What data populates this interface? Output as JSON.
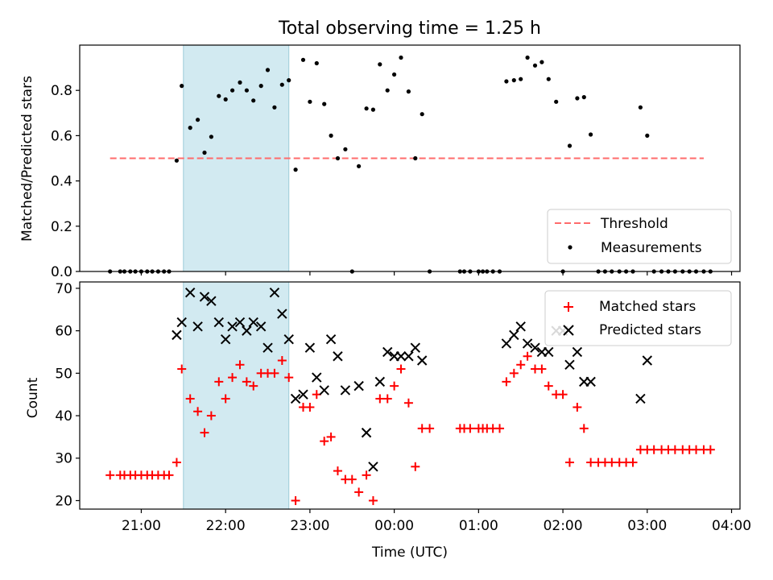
{
  "figure": {
    "title": "Total observing time = 1.25 h",
    "xlabel": "Time (UTC)",
    "x_ticks": [
      "21:00",
      "22:00",
      "23:00",
      "00:00",
      "01:00",
      "02:00",
      "03:00",
      "04:00"
    ],
    "x_tick_hours": [
      21,
      22,
      23,
      24,
      25,
      26,
      27,
      28
    ],
    "xlim_hours": [
      20.27,
      28.1
    ],
    "highlight_span_hours": [
      21.5,
      22.75
    ],
    "colors": {
      "highlight": "#add8e6",
      "threshold": "#ff6b6b",
      "measurement": "#000000",
      "matched": "#ff0000",
      "predicted": "#000000"
    }
  },
  "chart_data": [
    {
      "type": "scatter",
      "ylabel": "Matched/Predicted stars",
      "ylim": [
        0,
        1.0
      ],
      "y_ticks": [
        "0.0",
        "0.2",
        "0.4",
        "0.6",
        "0.8"
      ],
      "y_tick_values": [
        0.0,
        0.2,
        0.4,
        0.6,
        0.8
      ],
      "legend_position": "lower-right",
      "threshold": {
        "name": "Threshold",
        "value": 0.5,
        "x_range_hours": [
          20.63,
          27.67
        ]
      },
      "series": [
        {
          "name": "Measurements",
          "points": [
            [
              20.63,
              0.0
            ],
            [
              20.75,
              0.0
            ],
            [
              20.8,
              0.0
            ],
            [
              20.87,
              0.0
            ],
            [
              20.93,
              0.0
            ],
            [
              21.0,
              0.0
            ],
            [
              21.07,
              0.0
            ],
            [
              21.13,
              0.0
            ],
            [
              21.2,
              0.0
            ],
            [
              21.27,
              0.0
            ],
            [
              21.33,
              0.0
            ],
            [
              21.42,
              0.49
            ],
            [
              21.48,
              0.82
            ],
            [
              21.58,
              0.635
            ],
            [
              21.67,
              0.67
            ],
            [
              21.75,
              0.525
            ],
            [
              21.83,
              0.595
            ],
            [
              21.92,
              0.775
            ],
            [
              22.0,
              0.76
            ],
            [
              22.08,
              0.8
            ],
            [
              22.17,
              0.835
            ],
            [
              22.25,
              0.8
            ],
            [
              22.33,
              0.755
            ],
            [
              22.42,
              0.82
            ],
            [
              22.5,
              0.89
            ],
            [
              22.58,
              0.725
            ],
            [
              22.67,
              0.825
            ],
            [
              22.75,
              0.845
            ],
            [
              22.83,
              0.45
            ],
            [
              22.92,
              0.935
            ],
            [
              23.0,
              0.75
            ],
            [
              23.08,
              0.92
            ],
            [
              23.17,
              0.74
            ],
            [
              23.25,
              0.6
            ],
            [
              23.33,
              0.5
            ],
            [
              23.42,
              0.54
            ],
            [
              23.5,
              0.0
            ],
            [
              23.58,
              0.465
            ],
            [
              23.67,
              0.72
            ],
            [
              23.75,
              0.715
            ],
            [
              23.83,
              0.915
            ],
            [
              23.92,
              0.8
            ],
            [
              24.0,
              0.87
            ],
            [
              24.08,
              0.945
            ],
            [
              24.17,
              0.795
            ],
            [
              24.25,
              0.5
            ],
            [
              24.33,
              0.695
            ],
            [
              24.42,
              0.0
            ],
            [
              24.78,
              0.0
            ],
            [
              24.83,
              0.0
            ],
            [
              24.9,
              0.0
            ],
            [
              25.0,
              0.0
            ],
            [
              25.05,
              0.0
            ],
            [
              25.1,
              0.0
            ],
            [
              25.17,
              0.0
            ],
            [
              25.25,
              0.0
            ],
            [
              25.33,
              0.84
            ],
            [
              25.42,
              0.845
            ],
            [
              25.5,
              0.85
            ],
            [
              25.58,
              0.945
            ],
            [
              25.67,
              0.91
            ],
            [
              25.75,
              0.925
            ],
            [
              25.83,
              0.85
            ],
            [
              25.92,
              0.75
            ],
            [
              26.0,
              0.0
            ],
            [
              26.08,
              0.555
            ],
            [
              26.17,
              0.765
            ],
            [
              26.25,
              0.77
            ],
            [
              26.33,
              0.605
            ],
            [
              26.42,
              0.0
            ],
            [
              26.5,
              0.0
            ],
            [
              26.58,
              0.0
            ],
            [
              26.67,
              0.0
            ],
            [
              26.75,
              0.0
            ],
            [
              26.83,
              0.0
            ],
            [
              26.92,
              0.725
            ],
            [
              27.0,
              0.6
            ],
            [
              27.08,
              0.0
            ],
            [
              27.17,
              0.0
            ],
            [
              27.25,
              0.0
            ],
            [
              27.33,
              0.0
            ],
            [
              27.42,
              0.0
            ],
            [
              27.5,
              0.0
            ],
            [
              27.58,
              0.0
            ],
            [
              27.67,
              0.0
            ],
            [
              27.75,
              0.0
            ]
          ]
        }
      ]
    },
    {
      "type": "scatter",
      "ylabel": "Count",
      "ylim": [
        18,
        71.5
      ],
      "y_ticks": [
        "20",
        "30",
        "40",
        "50",
        "60",
        "70"
      ],
      "y_tick_values": [
        20,
        30,
        40,
        50,
        60,
        70
      ],
      "legend_position": "upper-right",
      "series": [
        {
          "name": "Matched stars",
          "marker": "plus",
          "points": [
            [
              20.63,
              26
            ],
            [
              20.75,
              26
            ],
            [
              20.8,
              26
            ],
            [
              20.87,
              26
            ],
            [
              20.93,
              26
            ],
            [
              21.0,
              26
            ],
            [
              21.07,
              26
            ],
            [
              21.13,
              26
            ],
            [
              21.2,
              26
            ],
            [
              21.27,
              26
            ],
            [
              21.33,
              26
            ],
            [
              21.42,
              29
            ],
            [
              21.48,
              51
            ],
            [
              21.58,
              44
            ],
            [
              21.67,
              41
            ],
            [
              21.75,
              36
            ],
            [
              21.83,
              40
            ],
            [
              21.92,
              48
            ],
            [
              22.0,
              44
            ],
            [
              22.08,
              49
            ],
            [
              22.17,
              52
            ],
            [
              22.25,
              48
            ],
            [
              22.33,
              47
            ],
            [
              22.42,
              50
            ],
            [
              22.5,
              50
            ],
            [
              22.58,
              50
            ],
            [
              22.67,
              53
            ],
            [
              22.75,
              49
            ],
            [
              22.83,
              20
            ],
            [
              22.92,
              42
            ],
            [
              23.0,
              42
            ],
            [
              23.08,
              45
            ],
            [
              23.17,
              34
            ],
            [
              23.25,
              35
            ],
            [
              23.33,
              27
            ],
            [
              23.42,
              25
            ],
            [
              23.5,
              25
            ],
            [
              23.58,
              22
            ],
            [
              23.67,
              26
            ],
            [
              23.75,
              20
            ],
            [
              23.83,
              44
            ],
            [
              23.92,
              44
            ],
            [
              24.0,
              47
            ],
            [
              24.08,
              51
            ],
            [
              24.17,
              43
            ],
            [
              24.25,
              28
            ],
            [
              24.33,
              37
            ],
            [
              24.42,
              37
            ],
            [
              24.78,
              37
            ],
            [
              24.83,
              37
            ],
            [
              24.9,
              37
            ],
            [
              25.0,
              37
            ],
            [
              25.05,
              37
            ],
            [
              25.1,
              37
            ],
            [
              25.17,
              37
            ],
            [
              25.25,
              37
            ],
            [
              25.33,
              48
            ],
            [
              25.42,
              50
            ],
            [
              25.5,
              52
            ],
            [
              25.58,
              54
            ],
            [
              25.67,
              51
            ],
            [
              25.75,
              51
            ],
            [
              25.83,
              47
            ],
            [
              25.92,
              45
            ],
            [
              26.0,
              45
            ],
            [
              26.08,
              29
            ],
            [
              26.17,
              42
            ],
            [
              26.25,
              37
            ],
            [
              26.33,
              29
            ],
            [
              26.42,
              29
            ],
            [
              26.5,
              29
            ],
            [
              26.58,
              29
            ],
            [
              26.67,
              29
            ],
            [
              26.75,
              29
            ],
            [
              26.83,
              29
            ],
            [
              26.92,
              32
            ],
            [
              27.0,
              32
            ],
            [
              27.08,
              32
            ],
            [
              27.17,
              32
            ],
            [
              27.25,
              32
            ],
            [
              27.33,
              32
            ],
            [
              27.42,
              32
            ],
            [
              27.5,
              32
            ],
            [
              27.58,
              32
            ],
            [
              27.67,
              32
            ],
            [
              27.75,
              32
            ]
          ]
        },
        {
          "name": "Predicted stars",
          "marker": "x",
          "points": [
            [
              21.42,
              59
            ],
            [
              21.48,
              62
            ],
            [
              21.58,
              69
            ],
            [
              21.67,
              61
            ],
            [
              21.75,
              68
            ],
            [
              21.83,
              67
            ],
            [
              21.92,
              62
            ],
            [
              22.0,
              58
            ],
            [
              22.08,
              61
            ],
            [
              22.17,
              62
            ],
            [
              22.25,
              60
            ],
            [
              22.33,
              62
            ],
            [
              22.42,
              61
            ],
            [
              22.5,
              56
            ],
            [
              22.58,
              69
            ],
            [
              22.67,
              64
            ],
            [
              22.75,
              58
            ],
            [
              22.83,
              44
            ],
            [
              22.92,
              45
            ],
            [
              23.0,
              56
            ],
            [
              23.08,
              49
            ],
            [
              23.17,
              46
            ],
            [
              23.25,
              58
            ],
            [
              23.33,
              54
            ],
            [
              23.42,
              46
            ],
            [
              23.58,
              47
            ],
            [
              23.67,
              36
            ],
            [
              23.75,
              28
            ],
            [
              23.83,
              48
            ],
            [
              23.92,
              55
            ],
            [
              24.0,
              54
            ],
            [
              24.08,
              54
            ],
            [
              24.17,
              54
            ],
            [
              24.25,
              56
            ],
            [
              24.33,
              53
            ],
            [
              25.33,
              57
            ],
            [
              25.42,
              59
            ],
            [
              25.5,
              61
            ],
            [
              25.58,
              57
            ],
            [
              25.67,
              56
            ],
            [
              25.75,
              55
            ],
            [
              25.83,
              55
            ],
            [
              25.92,
              60
            ],
            [
              26.0,
              60
            ],
            [
              26.08,
              52
            ],
            [
              26.17,
              55
            ],
            [
              26.25,
              48
            ],
            [
              26.33,
              48
            ],
            [
              26.92,
              44
            ],
            [
              27.0,
              53
            ]
          ]
        }
      ]
    }
  ],
  "legends": {
    "top": [
      "Threshold",
      "Measurements"
    ],
    "bottom": [
      "Matched stars",
      "Predicted stars"
    ]
  }
}
